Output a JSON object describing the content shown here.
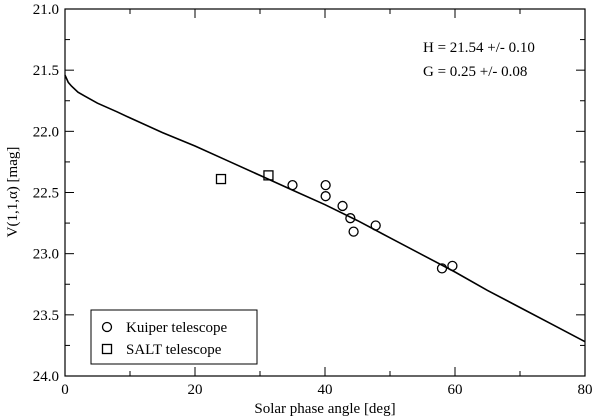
{
  "chart_data": {
    "type": "scatter",
    "xlabel": "Solar phase angle [deg]",
    "ylabel": "V(1,1,α) [mag]",
    "xlim": [
      0,
      80
    ],
    "ylim": [
      21.0,
      24.0
    ],
    "y_inverted": true,
    "grid": false,
    "x_ticks": [
      0,
      20,
      40,
      60,
      80
    ],
    "x_tick_labels": [
      "0",
      "20",
      "40",
      "60",
      "80"
    ],
    "y_ticks": [
      21.0,
      21.5,
      22.0,
      22.5,
      23.0,
      23.5,
      24.0
    ],
    "y_tick_labels": [
      "21.0",
      "21.5",
      "22.0",
      "22.5",
      "23.0",
      "23.5",
      "24.0"
    ],
    "annotations": [
      "H = 21.54 +/- 0.10",
      "G = 0.25 +/- 0.08"
    ],
    "legend_position": "bottom-left",
    "series": [
      {
        "name": "Kuiper telescope",
        "marker": "circle",
        "points": [
          [
            35.0,
            22.44
          ],
          [
            40.1,
            22.44
          ],
          [
            40.1,
            22.53
          ],
          [
            42.7,
            22.61
          ],
          [
            43.9,
            22.71
          ],
          [
            44.4,
            22.82
          ],
          [
            47.8,
            22.77
          ],
          [
            58.0,
            23.12
          ],
          [
            59.6,
            23.1
          ]
        ]
      },
      {
        "name": "SALT telescope",
        "marker": "square",
        "points": [
          [
            24.0,
            22.39
          ],
          [
            31.3,
            22.36
          ]
        ]
      },
      {
        "name": "",
        "type": "line",
        "style": "solid",
        "points": [
          [
            0,
            21.54
          ],
          [
            0.5,
            21.6
          ],
          [
            1,
            21.63
          ],
          [
            2,
            21.68
          ],
          [
            3,
            21.71
          ],
          [
            5,
            21.77
          ],
          [
            8,
            21.84
          ],
          [
            10,
            21.89
          ],
          [
            15,
            22.01
          ],
          [
            20,
            22.12
          ],
          [
            25,
            22.24
          ],
          [
            30,
            22.36
          ],
          [
            35,
            22.48
          ],
          [
            40,
            22.6
          ],
          [
            45,
            22.73
          ],
          [
            50,
            22.87
          ],
          [
            55,
            23.01
          ],
          [
            60,
            23.15
          ],
          [
            65,
            23.3
          ],
          [
            70,
            23.44
          ],
          [
            75,
            23.58
          ],
          [
            80,
            23.72
          ]
        ]
      }
    ]
  }
}
